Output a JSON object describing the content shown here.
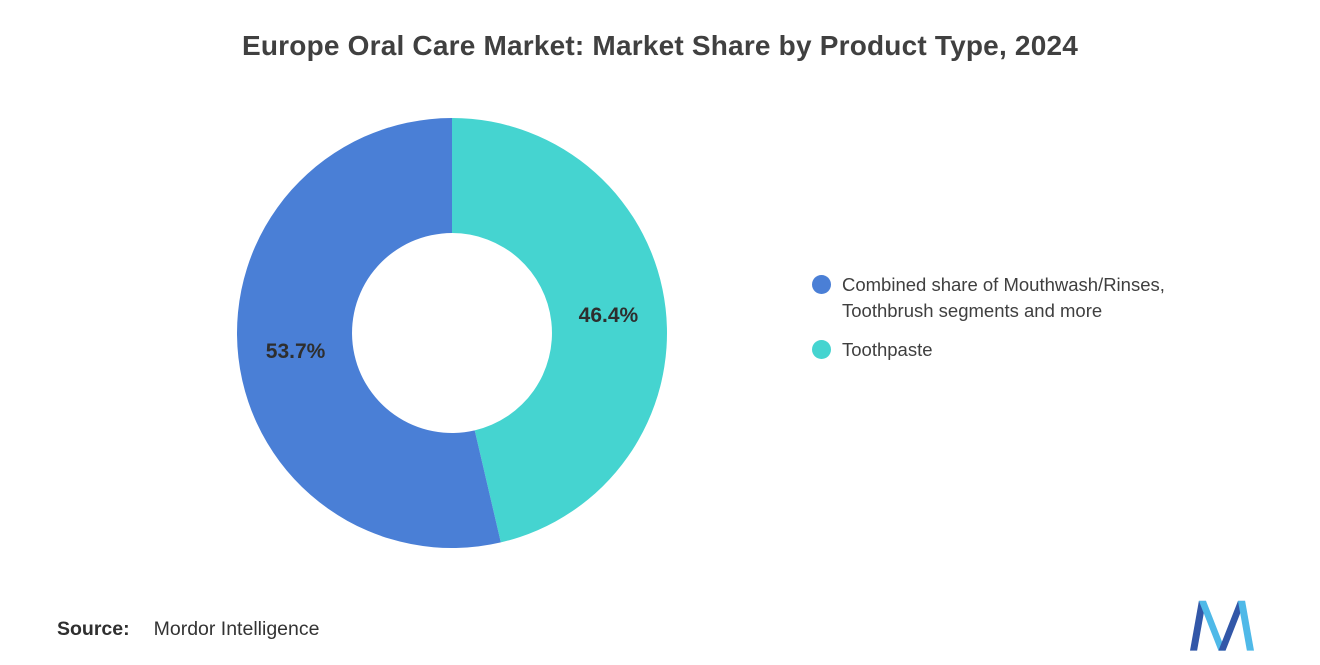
{
  "chart_data": {
    "type": "pie",
    "subtype": "donut",
    "title": "Europe Oral Care Market: Market Share by Product Type, 2024",
    "legend_position": "right",
    "direction": "clockwise",
    "start_angle_deg": 0,
    "inner_radius_ratio": 0.465,
    "labels_inside": true,
    "series": [
      {
        "name": "Combined share of Mouthwash/Rinses, Toothbrush segments and more",
        "name_lines": [
          "Combined share of Mouthwash/Rinses,",
          "Toothbrush segments and more"
        ],
        "value": 53.7,
        "label": "53.7%",
        "color": "#4A7FD6"
      },
      {
        "name": "Toothpaste",
        "name_lines": [
          "Toothpaste"
        ],
        "value": 46.4,
        "label": "46.4%",
        "color": "#45D4D0"
      }
    ]
  },
  "source": {
    "label": "Source:",
    "value": "Mordor Intelligence"
  },
  "logo": {
    "name": "mordor-intelligence-logo",
    "colors": {
      "dark": "#3257A8",
      "light": "#4FB9E8"
    }
  }
}
